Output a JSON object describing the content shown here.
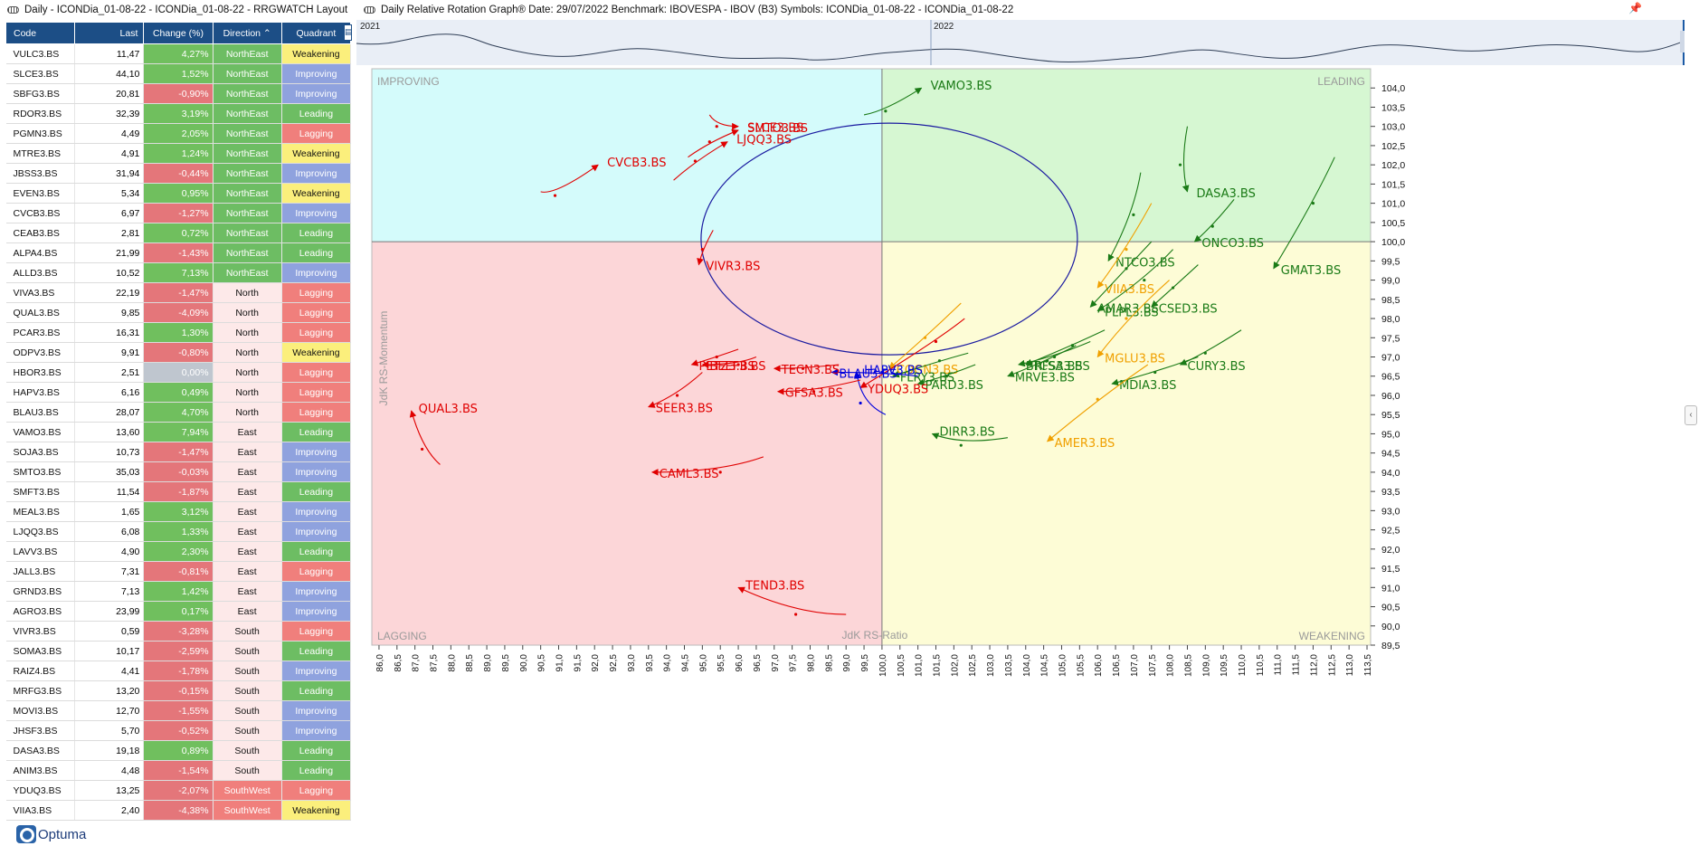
{
  "left_panel": {
    "title": "Daily - ICONDia_01-08-22 - ICONDia_01-08-22 - RRGWATCH Layout"
  },
  "right_panel": {
    "title": "Daily Relative Rotation Graph®   Date: 29/07/2022  Benchmark: IBOVESPA - IBOV (B3)  Symbols: ICONDia_01-08-22 - ICONDia_01-08-22"
  },
  "table": {
    "headers": {
      "code": "Code",
      "last": "Last",
      "change": "Change (%)",
      "direction": "Direction",
      "quadrant": "Quadrant"
    },
    "rows": [
      {
        "code": "VULC3.BS",
        "last": "11,47",
        "change": "4,27%",
        "direction": "NorthEast",
        "quadrant": "Weakening"
      },
      {
        "code": "SLCE3.BS",
        "last": "44,10",
        "change": "1,52%",
        "direction": "NorthEast",
        "quadrant": "Improving"
      },
      {
        "code": "SBFG3.BS",
        "last": "20,81",
        "change": "-0,90%",
        "direction": "NorthEast",
        "quadrant": "Improving"
      },
      {
        "code": "RDOR3.BS",
        "last": "32,39",
        "change": "3,19%",
        "direction": "NorthEast",
        "quadrant": "Leading"
      },
      {
        "code": "PGMN3.BS",
        "last": "4,49",
        "change": "2,05%",
        "direction": "NorthEast",
        "quadrant": "Lagging"
      },
      {
        "code": "MTRE3.BS",
        "last": "4,91",
        "change": "1,24%",
        "direction": "NorthEast",
        "quadrant": "Weakening"
      },
      {
        "code": "JBSS3.BS",
        "last": "31,94",
        "change": "-0,44%",
        "direction": "NorthEast",
        "quadrant": "Improving"
      },
      {
        "code": "EVEN3.BS",
        "last": "5,34",
        "change": "0,95%",
        "direction": "NorthEast",
        "quadrant": "Weakening"
      },
      {
        "code": "CVCB3.BS",
        "last": "6,97",
        "change": "-1,27%",
        "direction": "NorthEast",
        "quadrant": "Improving"
      },
      {
        "code": "CEAB3.BS",
        "last": "2,81",
        "change": "0,72%",
        "direction": "NorthEast",
        "quadrant": "Leading"
      },
      {
        "code": "ALPA4.BS",
        "last": "21,99",
        "change": "-1,43%",
        "direction": "NorthEast",
        "quadrant": "Leading"
      },
      {
        "code": "ALLD3.BS",
        "last": "10,52",
        "change": "7,13%",
        "direction": "NorthEast",
        "quadrant": "Improving"
      },
      {
        "code": "VIVA3.BS",
        "last": "22,19",
        "change": "-1,47%",
        "direction": "North",
        "quadrant": "Lagging"
      },
      {
        "code": "QUAL3.BS",
        "last": "9,85",
        "change": "-4,09%",
        "direction": "North",
        "quadrant": "Lagging"
      },
      {
        "code": "PCAR3.BS",
        "last": "16,31",
        "change": "1,30%",
        "direction": "North",
        "quadrant": "Lagging"
      },
      {
        "code": "ODPV3.BS",
        "last": "9,91",
        "change": "-0,80%",
        "direction": "North",
        "quadrant": "Weakening"
      },
      {
        "code": "HBOR3.BS",
        "last": "2,51",
        "change": "0,00%",
        "direction": "North",
        "quadrant": "Lagging"
      },
      {
        "code": "HAPV3.BS",
        "last": "6,16",
        "change": "0,49%",
        "direction": "North",
        "quadrant": "Lagging"
      },
      {
        "code": "BLAU3.BS",
        "last": "28,07",
        "change": "4,70%",
        "direction": "North",
        "quadrant": "Lagging"
      },
      {
        "code": "VAMO3.BS",
        "last": "13,60",
        "change": "7,94%",
        "direction": "East",
        "quadrant": "Leading"
      },
      {
        "code": "SOJA3.BS",
        "last": "10,73",
        "change": "-1,47%",
        "direction": "East",
        "quadrant": "Improving"
      },
      {
        "code": "SMTO3.BS",
        "last": "35,03",
        "change": "-0,03%",
        "direction": "East",
        "quadrant": "Improving"
      },
      {
        "code": "SMFT3.BS",
        "last": "11,54",
        "change": "-1,87%",
        "direction": "East",
        "quadrant": "Leading"
      },
      {
        "code": "MEAL3.BS",
        "last": "1,65",
        "change": "3,12%",
        "direction": "East",
        "quadrant": "Improving"
      },
      {
        "code": "LJQQ3.BS",
        "last": "6,08",
        "change": "1,33%",
        "direction": "East",
        "quadrant": "Improving"
      },
      {
        "code": "LAVV3.BS",
        "last": "4,90",
        "change": "2,30%",
        "direction": "East",
        "quadrant": "Leading"
      },
      {
        "code": "JALL3.BS",
        "last": "7,31",
        "change": "-0,81%",
        "direction": "East",
        "quadrant": "Lagging"
      },
      {
        "code": "GRND3.BS",
        "last": "7,13",
        "change": "1,42%",
        "direction": "East",
        "quadrant": "Improving"
      },
      {
        "code": "AGRO3.BS",
        "last": "23,99",
        "change": "0,17%",
        "direction": "East",
        "quadrant": "Improving"
      },
      {
        "code": "VIVR3.BS",
        "last": "0,59",
        "change": "-3,28%",
        "direction": "South",
        "quadrant": "Lagging"
      },
      {
        "code": "SOMA3.BS",
        "last": "10,17",
        "change": "-2,59%",
        "direction": "South",
        "quadrant": "Leading"
      },
      {
        "code": "RAIZ4.BS",
        "last": "4,41",
        "change": "-1,78%",
        "direction": "South",
        "quadrant": "Improving"
      },
      {
        "code": "MRFG3.BS",
        "last": "13,20",
        "change": "-0,15%",
        "direction": "South",
        "quadrant": "Leading"
      },
      {
        "code": "MOVI3.BS",
        "last": "12,70",
        "change": "-1,55%",
        "direction": "South",
        "quadrant": "Improving"
      },
      {
        "code": "JHSF3.BS",
        "last": "5,70",
        "change": "-0,52%",
        "direction": "South",
        "quadrant": "Improving"
      },
      {
        "code": "DASA3.BS",
        "last": "19,18",
        "change": "0,89%",
        "direction": "South",
        "quadrant": "Leading"
      },
      {
        "code": "ANIM3.BS",
        "last": "4,48",
        "change": "-1,54%",
        "direction": "South",
        "quadrant": "Leading"
      },
      {
        "code": "YDUQ3.BS",
        "last": "13,25",
        "change": "-2,07%",
        "direction": "SouthWest",
        "quadrant": "Lagging"
      },
      {
        "code": "VIIA3.BS",
        "last": "2,40",
        "change": "-4,38%",
        "direction": "SouthWest",
        "quadrant": "Weakening"
      }
    ]
  },
  "branding": {
    "logo_text": "Optuma"
  },
  "colors": {
    "header_bg": "#1c4e86",
    "positive": "#70bf5e",
    "negative": "#e4767a",
    "neutral": "#bfc6cf",
    "leading": "#6dbd63",
    "improving": "#8fa2de",
    "lagging": "#f07f7c",
    "weakening": "#fbef7c",
    "northeast": "#6dbd63",
    "north": "#fde9e9",
    "east": "#fde9e9",
    "south": "#fde9e9",
    "southwest": "#f07f7c"
  },
  "overview": {
    "year_labels": [
      "2021",
      "2022"
    ]
  },
  "chart_data": {
    "type": "scatter",
    "title": "Daily Relative Rotation Graph",
    "xlabel": "JdK RS-Ratio",
    "ylabel": "JdK RS-Momentum",
    "xlim": [
      85.8,
      113.6
    ],
    "ylim": [
      89.5,
      104.5
    ],
    "x_ticks": [
      "86,0",
      "86,5",
      "87,0",
      "87,5",
      "88,0",
      "88,5",
      "89,0",
      "89,5",
      "90,0",
      "90,5",
      "91,0",
      "91,5",
      "92,0",
      "92,5",
      "93,0",
      "93,5",
      "94,0",
      "94,5",
      "95,0",
      "95,5",
      "96,0",
      "96,5",
      "97,0",
      "97,5",
      "98,0",
      "98,5",
      "99,0",
      "99,5",
      "100,0",
      "100,5",
      "101,0",
      "101,5",
      "102,0",
      "102,5",
      "103,0",
      "103,5",
      "104,0",
      "104,5",
      "105,0",
      "105,5",
      "106,0",
      "106,5",
      "107,0",
      "107,5",
      "108,0",
      "108,5",
      "109,0",
      "109,5",
      "110,0",
      "110,5",
      "111,0",
      "111,5",
      "112,0",
      "112,5",
      "113,0",
      "113,5"
    ],
    "y_ticks": [
      "104,0",
      "103,5",
      "103,0",
      "102,5",
      "102,0",
      "101,5",
      "101,0",
      "100,5",
      "100,0",
      "99,5",
      "99,0",
      "98,5",
      "98,0",
      "97,5",
      "97,0",
      "96,5",
      "96,0",
      "95,5",
      "95,0",
      "94,5",
      "94,0",
      "93,5",
      "93,0",
      "92,5",
      "92,0",
      "91,5",
      "91,0",
      "90,5",
      "90,0",
      "89,5"
    ],
    "quadrants": {
      "improving": "IMPROVING",
      "leading": "LEADING",
      "lagging": "LAGGING",
      "weakening": "WEAKENING"
    },
    "series": [
      {
        "name": "VAMO3.BS",
        "color": "#1a7a16",
        "points": [
          [
            99.5,
            103.3
          ],
          [
            100.1,
            103.4
          ],
          [
            101.1,
            104.0
          ]
        ]
      },
      {
        "name": "SLCE3.BS",
        "color": "#e00000",
        "points": [
          [
            95.2,
            103.3
          ],
          [
            95.4,
            103.0
          ],
          [
            96.0,
            103.0
          ]
        ]
      },
      {
        "name": "SMTO3.BS",
        "color": "#e00000",
        "points": [
          [
            94.6,
            102.2
          ],
          [
            95.2,
            102.6
          ],
          [
            96.0,
            102.9
          ]
        ]
      },
      {
        "name": "LJQQ3.BS",
        "color": "#e00000",
        "points": [
          [
            94.2,
            101.6
          ],
          [
            94.8,
            102.1
          ],
          [
            95.7,
            102.6
          ]
        ]
      },
      {
        "name": "CVCB3.BS",
        "color": "#e00000",
        "points": [
          [
            90.5,
            101.3
          ],
          [
            90.9,
            101.2
          ],
          [
            92.1,
            102.0
          ]
        ]
      },
      {
        "name": "VIVR3.BS",
        "color": "#e00000",
        "points": [
          [
            95.3,
            100.3
          ],
          [
            95.0,
            99.8
          ],
          [
            94.9,
            99.4
          ]
        ]
      },
      {
        "name": "DASA3.BS",
        "color": "#1a7a16",
        "points": [
          [
            108.5,
            103.0
          ],
          [
            108.3,
            102.0
          ],
          [
            108.5,
            101.3
          ]
        ]
      },
      {
        "name": "ONCO3.BS",
        "color": "#1a7a16",
        "points": [
          [
            109.8,
            101.1
          ],
          [
            109.2,
            100.4
          ],
          [
            108.7,
            100.0
          ]
        ]
      },
      {
        "name": "GMAT3.BS",
        "color": "#1a7a16",
        "points": [
          [
            112.6,
            102.2
          ],
          [
            112.0,
            101.0
          ],
          [
            110.9,
            99.3
          ]
        ]
      },
      {
        "name": "NTCO3.BS",
        "color": "#1a7a16",
        "points": [
          [
            107.2,
            101.8
          ],
          [
            107.0,
            100.7
          ],
          [
            106.3,
            99.5
          ]
        ]
      },
      {
        "name": "VIIA3.BS",
        "color": "#f0a000",
        "points": [
          [
            107.5,
            101.0
          ],
          [
            106.8,
            99.8
          ],
          [
            106.0,
            98.8
          ]
        ]
      },
      {
        "name": "PLPL3.BS",
        "color": "#1a7a16",
        "points": [
          [
            108.1,
            99.8
          ],
          [
            107.3,
            99.0
          ],
          [
            106.0,
            98.2
          ]
        ]
      },
      {
        "name": "AMAR3.BS",
        "color": "#1a7a16",
        "points": [
          [
            107.5,
            100.0
          ],
          [
            106.8,
            99.3
          ],
          [
            105.8,
            98.3
          ]
        ]
      },
      {
        "name": "CSED3.BS",
        "color": "#1a7a16",
        "points": [
          [
            108.8,
            99.4
          ],
          [
            108.1,
            98.8
          ],
          [
            107.5,
            98.3
          ]
        ]
      },
      {
        "name": "TCSA3.BS",
        "color": "#1a7a16",
        "points": [
          [
            106.2,
            97.7
          ],
          [
            105.3,
            97.3
          ],
          [
            104.0,
            96.8
          ]
        ]
      },
      {
        "name": "MGLU3.BS",
        "color": "#f0a000",
        "points": [
          [
            108.0,
            99.0
          ],
          [
            106.8,
            98.0
          ],
          [
            106.0,
            97.0
          ]
        ]
      },
      {
        "name": "BRFS3.BS",
        "color": "#1a7a16",
        "points": [
          [
            105.8,
            97.4
          ],
          [
            104.8,
            97.0
          ],
          [
            103.8,
            96.8
          ]
        ]
      },
      {
        "name": "MRVE3.BS",
        "color": "#1a7a16",
        "points": [
          [
            105.4,
            97.3
          ],
          [
            104.6,
            96.9
          ],
          [
            103.5,
            96.5
          ]
        ]
      },
      {
        "name": "CURY3.BS",
        "color": "#1a7a16",
        "points": [
          [
            110.0,
            97.7
          ],
          [
            109.0,
            97.1
          ],
          [
            108.3,
            96.8
          ]
        ]
      },
      {
        "name": "MDIA3.BS",
        "color": "#1a7a16",
        "points": [
          [
            108.8,
            97.0
          ],
          [
            107.6,
            96.6
          ],
          [
            106.4,
            96.3
          ]
        ]
      },
      {
        "name": "COGN3.BS",
        "color": "#f0a000",
        "points": [
          [
            102.2,
            98.4
          ],
          [
            101.2,
            97.5
          ],
          [
            100.2,
            96.7
          ]
        ]
      },
      {
        "name": "FLRY3.BS",
        "color": "#1a7a16",
        "points": [
          [
            102.4,
            97.1
          ],
          [
            101.6,
            96.9
          ],
          [
            100.3,
            96.5
          ]
        ]
      },
      {
        "name": "PARD3.BS",
        "color": "#1a7a16",
        "points": [
          [
            102.6,
            96.8
          ],
          [
            101.8,
            96.5
          ],
          [
            101.0,
            96.3
          ]
        ]
      },
      {
        "name": "YDUQ3.BS",
        "color": "#e00000",
        "points": [
          [
            102.3,
            98.0
          ],
          [
            101.5,
            97.4
          ],
          [
            99.4,
            96.2
          ]
        ]
      },
      {
        "name": "BLAU3.BS",
        "color": "#0000dd",
        "points": [
          [
            101.0,
            96.5
          ],
          [
            100.0,
            96.6
          ],
          [
            98.6,
            96.6
          ]
        ]
      },
      {
        "name": "HAPV3.BS",
        "color": "#0000dd",
        "points": [
          [
            100.1,
            95.5
          ],
          [
            99.4,
            95.8
          ],
          [
            99.3,
            96.6
          ]
        ]
      },
      {
        "name": "BEEF3.BS",
        "color": "#e00000",
        "points": [
          [
            96.5,
            97.0
          ],
          [
            96.0,
            96.8
          ],
          [
            95.0,
            96.8
          ]
        ]
      },
      {
        "name": "PETZ3.BS",
        "color": "#e00000",
        "points": [
          [
            96.0,
            97.2
          ],
          [
            95.4,
            97.0
          ],
          [
            94.7,
            96.8
          ]
        ]
      },
      {
        "name": "TECN3.BS",
        "color": "#e00000",
        "points": [
          [
            98.8,
            96.8
          ],
          [
            97.8,
            96.7
          ],
          [
            97.0,
            96.7
          ]
        ]
      },
      {
        "name": "GFSA3.BS",
        "color": "#e00000",
        "points": [
          [
            99.4,
            96.4
          ],
          [
            98.1,
            96.1
          ],
          [
            97.1,
            96.1
          ]
        ]
      },
      {
        "name": "SEER3.BS",
        "color": "#e00000",
        "points": [
          [
            95.0,
            96.6
          ],
          [
            94.3,
            96.0
          ],
          [
            93.5,
            95.7
          ]
        ]
      },
      {
        "name": "QUAL3.BS",
        "color": "#e00000",
        "points": [
          [
            87.7,
            94.2
          ],
          [
            87.2,
            94.6
          ],
          [
            86.9,
            95.6
          ]
        ]
      },
      {
        "name": "DIRR3.BS",
        "color": "#1a7a16",
        "points": [
          [
            103.5,
            94.9
          ],
          [
            102.2,
            94.7
          ],
          [
            101.4,
            95.0
          ]
        ]
      },
      {
        "name": "AMER3.BS",
        "color": "#f0a000",
        "points": [
          [
            107.4,
            96.8
          ],
          [
            106.0,
            95.9
          ],
          [
            104.6,
            94.8
          ]
        ]
      },
      {
        "name": "CAML3.BS",
        "color": "#e00000",
        "points": [
          [
            96.7,
            94.4
          ],
          [
            95.5,
            94.0
          ],
          [
            93.6,
            94.0
          ]
        ]
      },
      {
        "name": "TEND3.BS",
        "color": "#e00000",
        "points": [
          [
            99.0,
            90.3
          ],
          [
            97.6,
            90.3
          ],
          [
            96.0,
            91.0
          ]
        ]
      }
    ]
  }
}
